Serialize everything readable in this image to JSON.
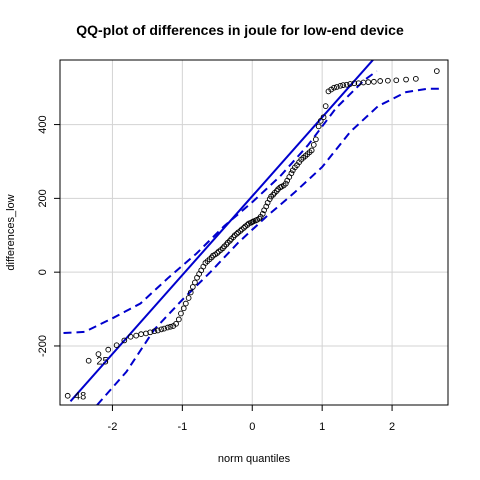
{
  "chart_data": {
    "type": "scatter",
    "title": "QQ-plot of differences in joule for low-end device",
    "xlabel": "norm quantiles",
    "ylabel": "differences_low",
    "xlim": [
      -2.75,
      2.8
    ],
    "ylim": [
      -360,
      575
    ],
    "xticks": [
      -2,
      -1,
      0,
      1,
      2
    ],
    "yticks": [
      -200,
      0,
      200,
      400
    ],
    "grid": true,
    "colors": {
      "points": "#000000",
      "lines": "#0000cd",
      "grid": "#d3d3d3"
    },
    "reference_line": {
      "points": [
        [
          -2.6,
          -350
        ],
        [
          2.1,
          655
        ]
      ]
    },
    "confidence_envelope": {
      "upper": [
        [
          -2.7,
          -165
        ],
        [
          -2.4,
          -162
        ],
        [
          -2.0,
          -125
        ],
        [
          -1.6,
          -85
        ],
        [
          -1.2,
          -15
        ],
        [
          -0.8,
          50
        ],
        [
          -0.4,
          125
        ],
        [
          0.0,
          190
        ],
        [
          0.4,
          260
        ],
        [
          0.8,
          345
        ],
        [
          1.2,
          445
        ],
        [
          1.6,
          520
        ],
        [
          1.78,
          545
        ]
      ],
      "lower": [
        [
          -2.22,
          -360
        ],
        [
          -1.8,
          -270
        ],
        [
          -1.4,
          -155
        ],
        [
          -1.0,
          -75
        ],
        [
          -0.6,
          0
        ],
        [
          -0.2,
          80
        ],
        [
          0.2,
          150
        ],
        [
          0.6,
          215
        ],
        [
          1.0,
          285
        ],
        [
          1.4,
          380
        ],
        [
          1.8,
          450
        ],
        [
          2.2,
          488
        ],
        [
          2.5,
          497
        ],
        [
          2.7,
          497
        ]
      ]
    },
    "point_labels": [
      {
        "text": "25",
        "x": -2.23,
        "y": -240
      },
      {
        "text": "48",
        "x": -2.55,
        "y": -335
      }
    ],
    "points": {
      "x": [
        -2.64,
        -2.34,
        -2.2,
        -2.06,
        -1.94,
        -1.83,
        -1.74,
        -1.66,
        -1.59,
        -1.52,
        -1.46,
        -1.4,
        -1.35,
        -1.3,
        -1.26,
        -1.21,
        -1.17,
        -1.13,
        -1.09,
        -1.05,
        -1.02,
        -0.98,
        -0.95,
        -0.91,
        -0.88,
        -0.85,
        -0.82,
        -0.79,
        -0.76,
        -0.73,
        -0.7,
        -0.67,
        -0.64,
        -0.61,
        -0.58,
        -0.56,
        -0.53,
        -0.5,
        -0.48,
        -0.45,
        -0.42,
        -0.4,
        -0.37,
        -0.35,
        -0.32,
        -0.3,
        -0.27,
        -0.25,
        -0.22,
        -0.2,
        -0.17,
        -0.15,
        -0.12,
        -0.1,
        -0.07,
        -0.05,
        -0.02,
        0.0,
        0.02,
        0.05,
        0.07,
        0.1,
        0.12,
        0.15,
        0.17,
        0.2,
        0.22,
        0.25,
        0.27,
        0.3,
        0.32,
        0.35,
        0.37,
        0.4,
        0.42,
        0.45,
        0.48,
        0.5,
        0.53,
        0.56,
        0.58,
        0.61,
        0.64,
        0.67,
        0.7,
        0.73,
        0.76,
        0.79,
        0.82,
        0.85,
        0.88,
        0.91,
        0.95,
        0.98,
        1.02,
        1.05,
        1.09,
        1.13,
        1.17,
        1.21,
        1.26,
        1.3,
        1.35,
        1.4,
        1.46,
        1.52,
        1.59,
        1.66,
        1.74,
        1.83,
        1.94,
        2.06,
        2.2,
        2.34,
        2.64
      ],
      "y": [
        -335,
        -240,
        -222,
        -210,
        -198,
        -185,
        -175,
        -172,
        -168,
        -166,
        -163,
        -160,
        -158,
        -155,
        -153,
        -150,
        -148,
        -146,
        -140,
        -128,
        -112,
        -98,
        -85,
        -70,
        -55,
        -40,
        -28,
        -15,
        -5,
        5,
        15,
        25,
        30,
        35,
        40,
        45,
        48,
        52,
        56,
        60,
        65,
        70,
        75,
        80,
        85,
        90,
        95,
        100,
        104,
        108,
        112,
        116,
        120,
        124,
        128,
        132,
        134,
        136,
        138,
        140,
        142,
        145,
        150,
        158,
        168,
        178,
        188,
        198,
        205,
        210,
        215,
        220,
        225,
        230,
        232,
        235,
        240,
        248,
        258,
        268,
        276,
        284,
        290,
        298,
        305,
        310,
        315,
        320,
        325,
        330,
        345,
        360,
        395,
        410,
        420,
        450,
        490,
        495,
        500,
        502,
        505,
        507,
        508,
        510,
        512,
        512,
        514,
        515,
        516,
        518,
        519,
        520,
        522,
        524,
        545
      ]
    }
  }
}
